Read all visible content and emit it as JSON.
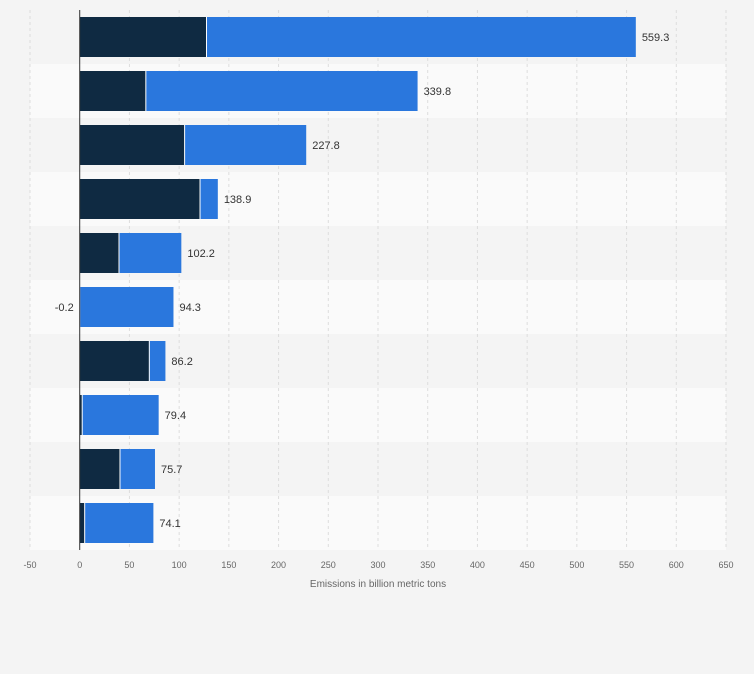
{
  "chart_data": {
    "type": "bar",
    "orientation": "horizontal",
    "stacked": true,
    "categories": [
      "",
      "",
      "",
      "",
      "",
      "",
      "",
      "",
      "",
      ""
    ],
    "series": [
      {
        "values": [
          127.5,
          66.5,
          105.5,
          121.0,
          39.5,
          -0.2,
          70.0,
          2.5,
          40.5,
          5.0
        ],
        "color": "#0f2a42"
      },
      {
        "values": [
          431.8,
          273.3,
          122.3,
          17.9,
          62.7,
          94.3,
          16.2,
          76.9,
          35.2,
          69.1
        ],
        "color": "#2a77dd"
      }
    ],
    "totals": [
      "559.3",
      "339.8",
      "227.8",
      "138.9",
      "102.2",
      "94.3",
      "86.2",
      "79.4",
      "75.7",
      "74.1"
    ],
    "total_values": [
      559.3,
      339.8,
      227.8,
      138.9,
      102.2,
      94.3,
      86.2,
      79.4,
      75.7,
      74.1
    ],
    "negative_labels": [
      "",
      "",
      "",
      "",
      "",
      "-0.2",
      "",
      "",
      "",
      ""
    ],
    "xlim": [
      -50,
      650
    ],
    "xticks": [
      -50,
      0,
      50,
      100,
      150,
      200,
      250,
      300,
      350,
      400,
      450,
      500,
      550,
      600,
      650
    ],
    "xtick_labels": [
      "-50",
      "0",
      "50",
      "100",
      "150",
      "200",
      "250",
      "300",
      "350",
      "400",
      "450",
      "500",
      "550",
      "600",
      "650"
    ],
    "xlabel": "Emissions in billion metric tons",
    "ylabel": "",
    "title": "",
    "grid": true,
    "legend": "none"
  }
}
